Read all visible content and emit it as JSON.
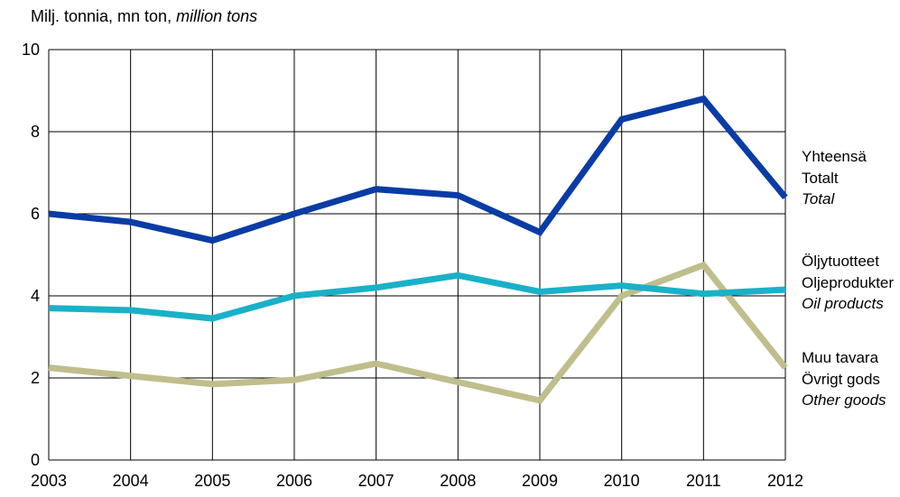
{
  "y_unit": {
    "line1": "Milj. tonnia, mn ton, ",
    "line2": "million tons"
  },
  "chart_data": {
    "type": "line",
    "x": [
      "2003",
      "2004",
      "2005",
      "2006",
      "2007",
      "2008",
      "2009",
      "2010",
      "2011",
      "2012"
    ],
    "ylim": [
      0,
      10
    ],
    "yticks": [
      "0",
      "2",
      "4",
      "6",
      "8",
      "10"
    ],
    "grid": true,
    "legend_position": "right",
    "series": [
      {
        "name": "Yhteensä / Totalt / Total",
        "color": "#0a3ca5",
        "values": [
          6.0,
          5.8,
          5.35,
          6.0,
          6.6,
          6.45,
          5.55,
          8.3,
          8.8,
          6.4
        ]
      },
      {
        "name": "Öljytuotteet / Oljeprodukter / Oil products",
        "color": "#1ab1c8",
        "values": [
          3.7,
          3.65,
          3.45,
          4.0,
          4.2,
          4.5,
          4.1,
          4.25,
          4.05,
          4.15
        ]
      },
      {
        "name": "Muu tavara / Övrigt gods / Other goods",
        "color": "#bfbe8c",
        "values": [
          2.25,
          2.05,
          1.85,
          1.95,
          2.35,
          1.9,
          1.45,
          4.0,
          4.75,
          2.25
        ]
      }
    ]
  },
  "legend": [
    {
      "l1": "Yhteensä",
      "l2": "Totalt",
      "l3": "Total"
    },
    {
      "l1": "Öljytuotteet",
      "l2": "Oljeprodukter",
      "l3": "Oil products"
    },
    {
      "l1": "Muu tavara",
      "l2": "Övrigt gods",
      "l3": "Other goods"
    }
  ]
}
